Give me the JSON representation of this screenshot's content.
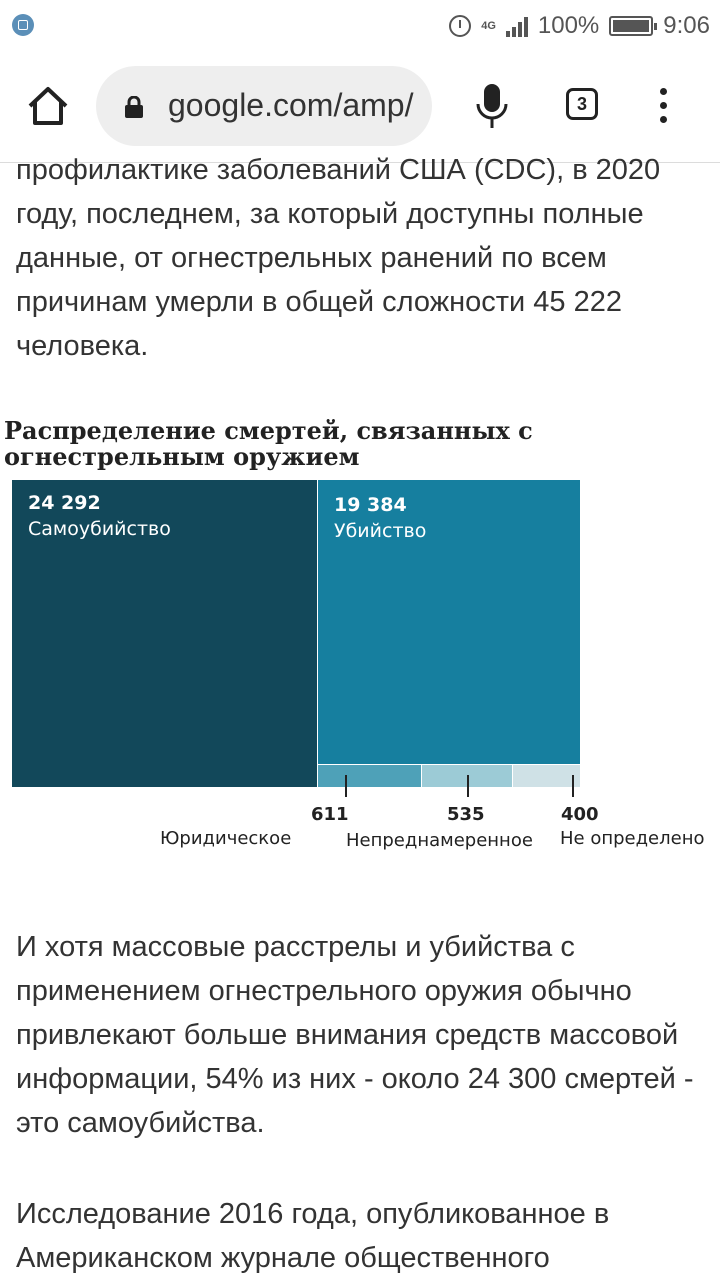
{
  "status_bar": {
    "network": "4G",
    "battery": "100%",
    "time": "9:06"
  },
  "browser": {
    "url": "google.com/amp/",
    "tab_count": "3"
  },
  "article": {
    "paragraph_top": "профилактике заболеваний США (CDC), в 2020 году, последнем, за который доступны полные данные, от огнестрельных ранений по всем причинам умерли в общей сложности 45 222 человека.",
    "paragraph_2": "И хотя массовые расстрелы и убийства с применением огнестрельного оружия обычно привлекают больше внимания средств массовой информации, 54% из них - около 24 300 смертей - это самоубийства.",
    "paragraph_3": "Исследование 2016 года, опубликованное в Американском журнале общественного"
  },
  "chart_data": {
    "type": "treemap",
    "title": "Распределение смертей, связанных с огнестрельным оружием",
    "items": [
      {
        "label": "Самоубийство",
        "value": 24292,
        "value_label": "24 292",
        "color": "#12485a"
      },
      {
        "label": "Убийство",
        "value": 19384,
        "value_label": "19 384",
        "color": "#167f9f"
      },
      {
        "label": "Юридическое",
        "value": 611,
        "value_label": "611",
        "color": "#4ea1b8"
      },
      {
        "label": "Непреднамеренное",
        "value": 535,
        "value_label": "535",
        "color": "#9ccbd6"
      },
      {
        "label": "Не определено",
        "value": 400,
        "value_label": "400",
        "color": "#cfe1e6"
      }
    ]
  }
}
